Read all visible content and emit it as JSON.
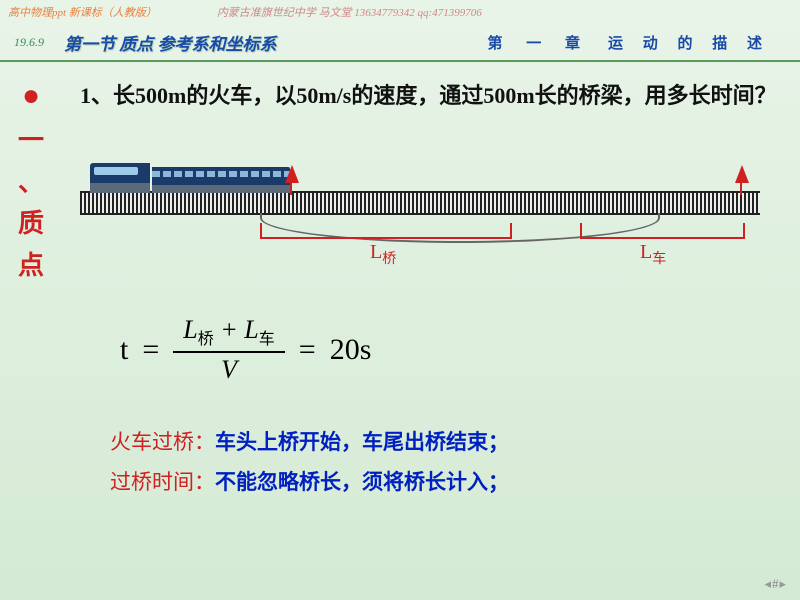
{
  "topbar": {
    "left": "高中物理ppt  新课标（人教版）",
    "right": "内蒙古准旗世纪中学 马文堂  13634779342  qq:471399706"
  },
  "header": {
    "date": "19.6.9",
    "section_title": "第一节 质点 参考系和坐标系",
    "chapter": "第 一 章",
    "chapter_desc": "运 动 的 描 述"
  },
  "side": {
    "line1": "一",
    "line2": "、",
    "line3": "质",
    "line4": "点"
  },
  "problem": "1、长500m的火车，以50m/s的速度，通过500m长的桥梁，用多长时间？",
  "labels": {
    "L_bridge_prefix": "L",
    "L_bridge_sub": "桥",
    "L_train_prefix": "L",
    "L_train_sub": "车"
  },
  "equation": {
    "t": "t",
    "eq1": "=",
    "num_L1": "L",
    "num_s1": "桥",
    "plus": " + ",
    "num_L2": "L",
    "num_s2": "车",
    "den": "V",
    "eq2": "=",
    "result": "20s"
  },
  "notes": {
    "row1_label": "火车过桥：",
    "row1_text": "车头上桥开始，车尾出桥结束；",
    "row2_label": "过桥时间：",
    "row2_text": "不能忽略桥长，须将桥长计入；"
  },
  "page_num": "#"
}
